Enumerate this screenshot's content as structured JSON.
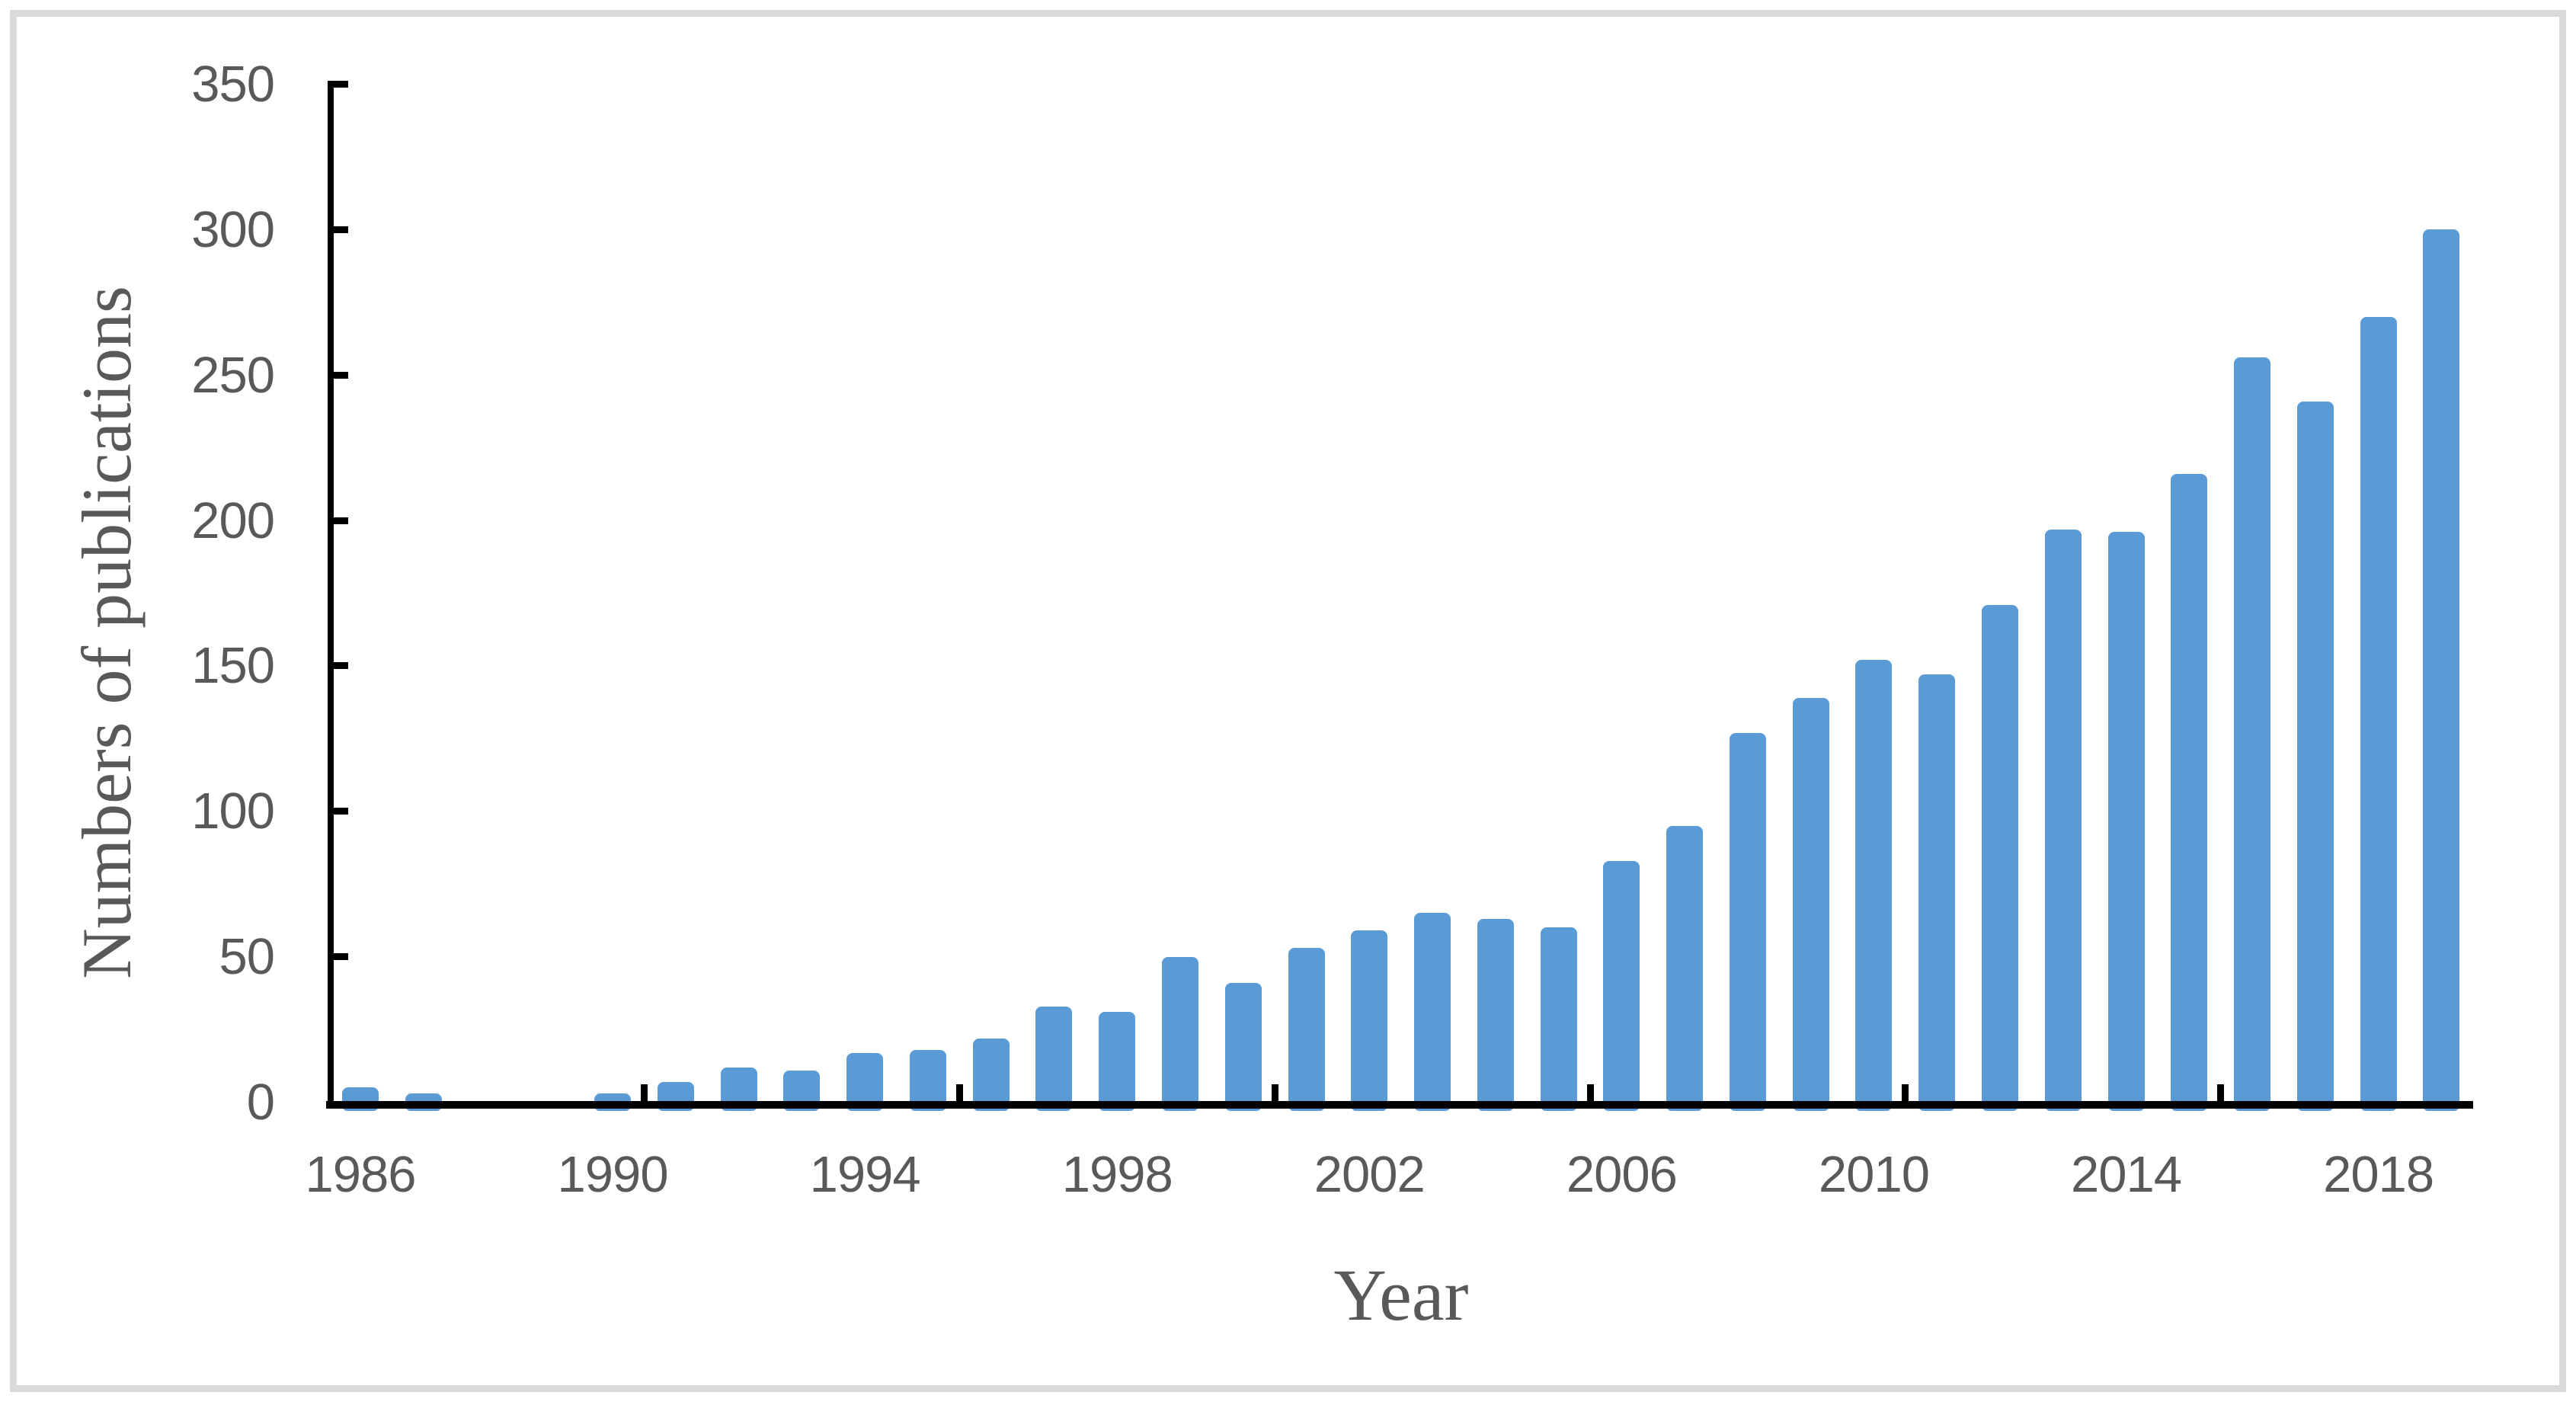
{
  "figure": {
    "background_color": "#FFFFFF",
    "border_color": "#D9D9D9"
  },
  "chart_data": {
    "type": "bar",
    "title": "",
    "xlabel": "Year",
    "ylabel": "Numbers of publications",
    "categories": [
      1986,
      1987,
      1988,
      1989,
      1990,
      1991,
      1992,
      1993,
      1994,
      1995,
      1996,
      1997,
      1998,
      1999,
      2000,
      2001,
      2002,
      2003,
      2004,
      2005,
      2006,
      2007,
      2008,
      2009,
      2010,
      2011,
      2012,
      2013,
      2014,
      2015,
      2016,
      2017,
      2018,
      2019
    ],
    "values": [
      5,
      3,
      0,
      0,
      3,
      7,
      12,
      11,
      17,
      18,
      22,
      33,
      31,
      50,
      41,
      53,
      59,
      65,
      63,
      60,
      83,
      95,
      127,
      139,
      152,
      147,
      171,
      197,
      196,
      216,
      256,
      241,
      270,
      300
    ],
    "ylim": [
      0,
      350
    ],
    "ytick_interval": 50,
    "ytick_labels": [
      "0",
      "50",
      "100",
      "150",
      "200",
      "250",
      "300",
      "350"
    ],
    "xtick_labels": [
      "1986",
      "1990",
      "1994",
      "1998",
      "2002",
      "2006",
      "2010",
      "2014",
      "2018"
    ],
    "xtick_label_start_year": 1986,
    "xtick_label_step": 4,
    "boundary_tick_step": 5,
    "grid": "off",
    "legend": "none",
    "bar_color": "#5B9BD5",
    "axis_color": "#000000",
    "tick_label_color": "#595959",
    "axis_title_color": "#595959"
  }
}
